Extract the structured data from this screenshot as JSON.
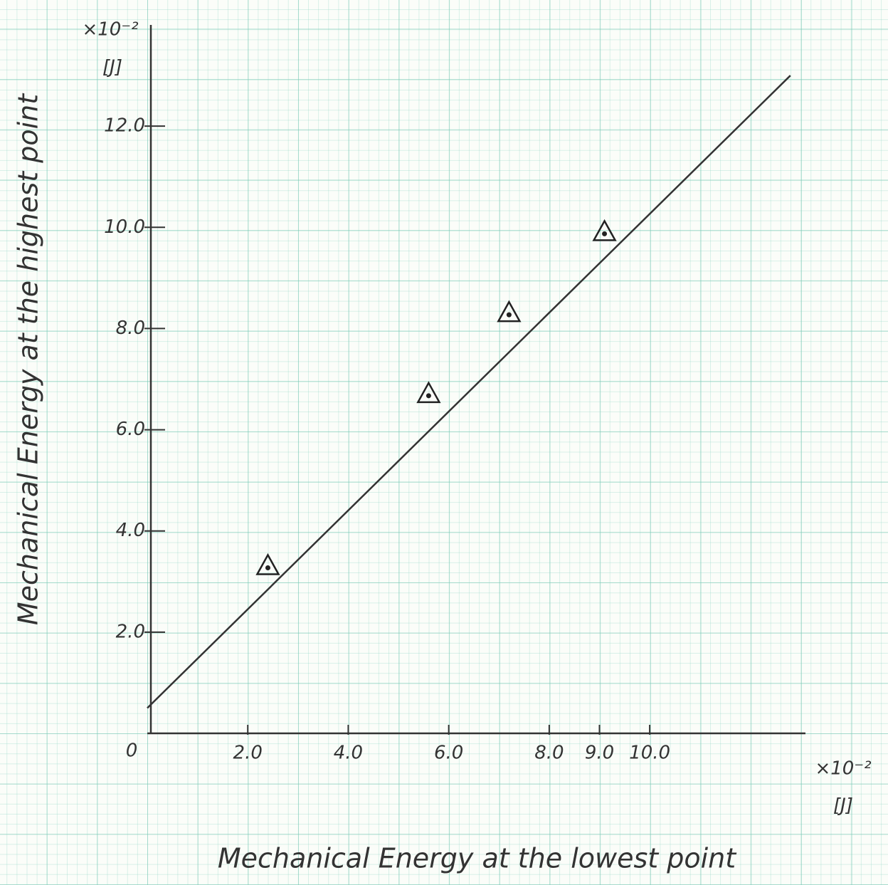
{
  "chart_data": {
    "type": "scatter",
    "x_label": "Mechanical Energy at the lowest point",
    "y_label": "Mechanical Energy at the highest point",
    "x_unit": {
      "multiplier": "×10⁻²",
      "unit": "[J]"
    },
    "y_unit": {
      "multiplier": "×10⁻²",
      "unit": "[J]"
    },
    "origin_label": "0",
    "xlim": [
      0,
      13.1
    ],
    "ylim": [
      0,
      14.0
    ],
    "xticks": [
      {
        "value": 2,
        "label": "2.0"
      },
      {
        "value": 4,
        "label": "4.0"
      },
      {
        "value": 6,
        "label": "6.0"
      },
      {
        "value": 8,
        "label": "8.0"
      },
      {
        "value": 9,
        "label": "9.0"
      },
      {
        "value": 10,
        "label": "10.0"
      }
    ],
    "yticks": [
      {
        "value": 2,
        "label": "2.0"
      },
      {
        "value": 4,
        "label": "4.0"
      },
      {
        "value": 6,
        "label": "6.0"
      },
      {
        "value": 8,
        "label": "8.0"
      },
      {
        "value": 10,
        "label": "10.0"
      },
      {
        "value": 12,
        "label": "12.0"
      }
    ],
    "x": [
      2.4,
      5.6,
      7.2,
      9.1
    ],
    "y": [
      3.3,
      6.7,
      8.3,
      9.9
    ],
    "color": "#222",
    "fit_line": {
      "x": [
        0,
        12.8
      ],
      "y": [
        0.5,
        13.0
      ],
      "color": "#333"
    }
  }
}
